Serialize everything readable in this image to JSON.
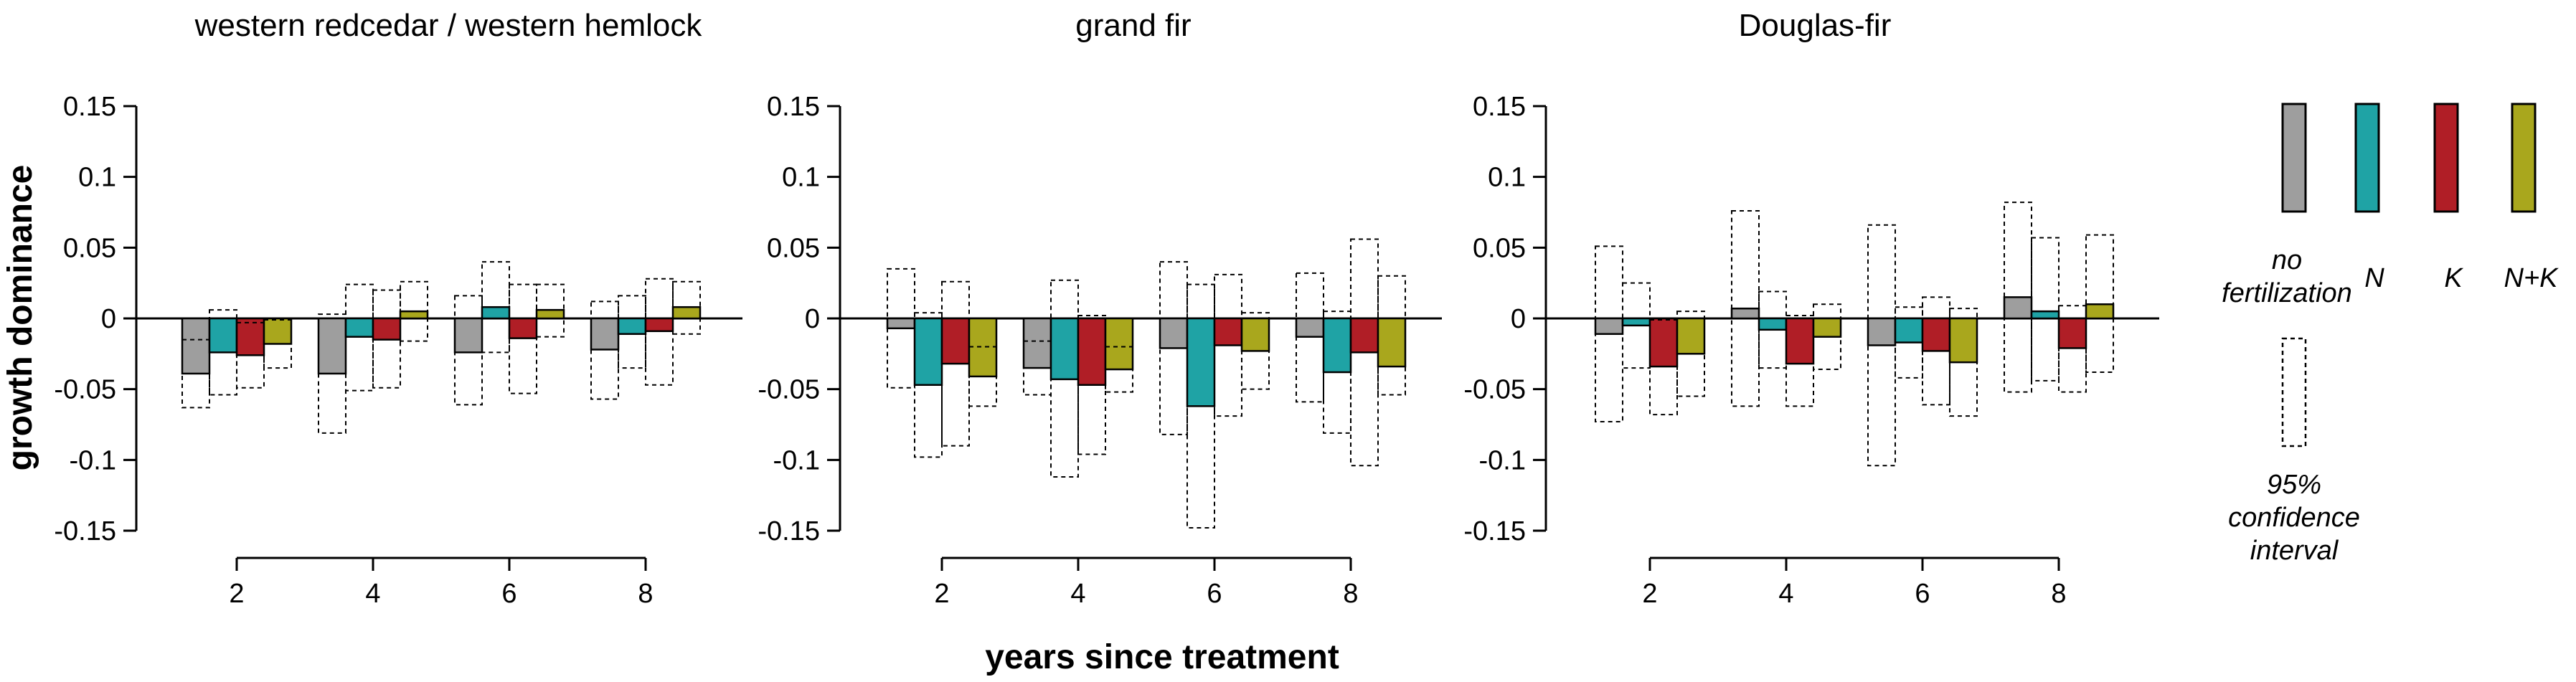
{
  "figure": {
    "ylabel": "growth dominance",
    "xlabel": "years since treatment"
  },
  "legend": {
    "items": [
      {
        "key": "none",
        "label_lines": [
          "no",
          "fertilization"
        ],
        "color": "#9e9e9e"
      },
      {
        "key": "N",
        "label_lines": [
          "N"
        ],
        "color": "#1fa3a5"
      },
      {
        "key": "K",
        "label_lines": [
          "K"
        ],
        "color": "#b01e26"
      },
      {
        "key": "NK",
        "label_lines": [
          "N+K"
        ],
        "color": "#a9a71d"
      }
    ],
    "ci_label_lines": [
      "95%",
      "confidence",
      "interval"
    ]
  },
  "chart_data": [
    {
      "type": "bar",
      "title": "western redcedar / western hemlock",
      "x": [
        2,
        4,
        6,
        8
      ],
      "ylim": [
        -0.15,
        0.15
      ],
      "yticks": [
        "0.15",
        "0.1",
        "0.05",
        "0",
        "-0.05",
        "-0.1",
        "-0.15"
      ],
      "xticks": [
        "2",
        "4",
        "6",
        "8"
      ],
      "series": [
        {
          "key": "none",
          "values": [
            -0.039,
            -0.039,
            -0.024,
            -0.022
          ],
          "ci_low": [
            -0.063,
            -0.081,
            -0.061,
            -0.057
          ],
          "ci_high": [
            -0.015,
            0.003,
            0.016,
            0.012
          ]
        },
        {
          "key": "N",
          "values": [
            -0.024,
            -0.013,
            0.008,
            -0.011
          ],
          "ci_low": [
            -0.054,
            -0.051,
            -0.024,
            -0.035
          ],
          "ci_high": [
            0.006,
            0.024,
            0.04,
            0.016
          ]
        },
        {
          "key": "K",
          "values": [
            -0.026,
            -0.015,
            -0.014,
            -0.009
          ],
          "ci_low": [
            -0.049,
            -0.049,
            -0.053,
            -0.047
          ],
          "ci_high": [
            -0.003,
            0.02,
            0.024,
            0.028
          ]
        },
        {
          "key": "NK",
          "values": [
            -0.018,
            0.005,
            0.006,
            0.008
          ],
          "ci_low": [
            -0.035,
            -0.016,
            -0.013,
            -0.011
          ],
          "ci_high": [
            -0.001,
            0.026,
            0.024,
            0.026
          ]
        }
      ]
    },
    {
      "type": "bar",
      "title": "grand fir",
      "x": [
        2,
        4,
        6,
        8
      ],
      "ylim": [
        -0.15,
        0.15
      ],
      "yticks": [
        "0.15",
        "0.1",
        "0.05",
        "0",
        "-0.05",
        "-0.1",
        "-0.15"
      ],
      "xticks": [
        "2",
        "4",
        "6",
        "8"
      ],
      "series": [
        {
          "key": "none",
          "values": [
            -0.007,
            -0.035,
            -0.021,
            -0.013
          ],
          "ci_low": [
            -0.049,
            -0.054,
            -0.082,
            -0.059
          ],
          "ci_high": [
            0.035,
            -0.016,
            0.04,
            0.032
          ]
        },
        {
          "key": "N",
          "values": [
            -0.047,
            -0.043,
            -0.062,
            -0.038
          ],
          "ci_low": [
            -0.098,
            -0.112,
            -0.148,
            -0.081
          ],
          "ci_high": [
            0.004,
            0.027,
            0.024,
            0.005
          ]
        },
        {
          "key": "K",
          "values": [
            -0.032,
            -0.047,
            -0.019,
            -0.024
          ],
          "ci_low": [
            -0.09,
            -0.096,
            -0.069,
            -0.104
          ],
          "ci_high": [
            0.026,
            0.002,
            0.031,
            0.056
          ]
        },
        {
          "key": "NK",
          "values": [
            -0.041,
            -0.036,
            -0.023,
            -0.034
          ],
          "ci_low": [
            -0.062,
            -0.052,
            -0.05,
            -0.054
          ],
          "ci_high": [
            -0.02,
            -0.02,
            0.004,
            0.03
          ]
        }
      ]
    },
    {
      "type": "bar",
      "title": "Douglas-fir",
      "x": [
        2,
        4,
        6,
        8
      ],
      "ylim": [
        -0.15,
        0.15
      ],
      "yticks": [
        "0.15",
        "0.1",
        "0.05",
        "0",
        "-0.05",
        "-0.1",
        "-0.15"
      ],
      "xticks": [
        "2",
        "4",
        "6",
        "8"
      ],
      "series": [
        {
          "key": "none",
          "values": [
            -0.011,
            0.007,
            -0.019,
            0.015
          ],
          "ci_low": [
            -0.073,
            -0.062,
            -0.104,
            -0.052
          ],
          "ci_high": [
            0.051,
            0.076,
            0.066,
            0.082
          ]
        },
        {
          "key": "N",
          "values": [
            -0.005,
            -0.008,
            -0.017,
            0.005
          ],
          "ci_low": [
            -0.035,
            -0.035,
            -0.042,
            -0.044
          ],
          "ci_high": [
            0.025,
            0.019,
            0.008,
            0.057
          ]
        },
        {
          "key": "K",
          "values": [
            -0.034,
            -0.032,
            -0.023,
            -0.021
          ],
          "ci_low": [
            -0.068,
            -0.062,
            -0.061,
            -0.052
          ],
          "ci_high": [
            -0.001,
            0.002,
            0.015,
            0.009
          ]
        },
        {
          "key": "NK",
          "values": [
            -0.025,
            -0.013,
            -0.031,
            0.01
          ],
          "ci_low": [
            -0.055,
            -0.036,
            -0.069,
            -0.038
          ],
          "ci_high": [
            0.005,
            0.01,
            0.007,
            0.059
          ]
        }
      ]
    }
  ]
}
